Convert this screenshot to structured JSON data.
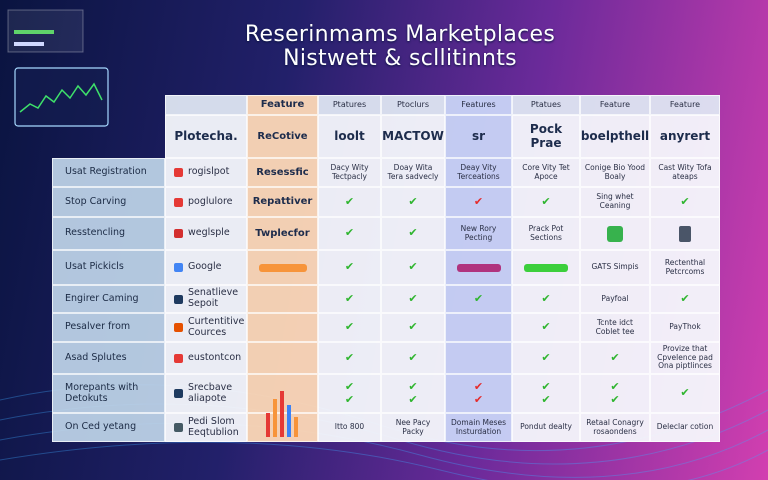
{
  "header": {
    "title_lines": [
      "Reserinmams Marketplaces",
      "Nistwett & scllitinnts"
    ]
  },
  "table": {
    "header": [
      null,
      "Feature",
      "Ptatures",
      "Ptoclurs",
      "Features",
      "Ptatues",
      "Feature",
      "Feature"
    ],
    "logos": [
      "Plotecha.",
      "ReCotive",
      "loolt",
      "MACTOW",
      "sr",
      "Pock Prae",
      "boelpthell",
      "anyrert"
    ],
    "rows": [
      {
        "label": "Usat Registration",
        "cells": [
          "rogislpot",
          "Resessfic",
          "Dacy Wity Tectpacly",
          "Doay Wita Tera sadvecly",
          "Deay Vity Terceations",
          "Core Vity Tet Apoce",
          "Conige Bio Yood Boaly",
          "Cast Wity Tofa ateaps"
        ]
      },
      {
        "label": "Stop Carving",
        "cells": [
          "poglulore",
          "Repattiver",
          "✔",
          "✔",
          "✔",
          "✔",
          "Sing whet Ceaning",
          "✔"
        ]
      },
      {
        "label": "Resstencling",
        "cells": [
          "weglsple",
          "Twplecfor",
          "✔",
          "✔",
          "New Rory Pecting",
          "Prack Pot Sections",
          null,
          null
        ]
      },
      {
        "label": "Usat Pickicls",
        "cells": [
          "Google",
          null,
          "✔",
          "✔",
          null,
          null,
          "GATS Simpis",
          "Rectenthal Petcrcoms"
        ]
      },
      {
        "label": "Engirer Caming",
        "cells": [
          "Senatlieve Sepoit",
          null,
          "✔",
          "✔",
          "✔",
          "✔",
          "Payfoal",
          "✔"
        ]
      },
      {
        "label": "Pesalver from",
        "cells": [
          "Curtentitive Cources",
          null,
          "✔",
          "✔",
          null,
          "✔",
          "Tcnte idct Coblet tee",
          "PayThok"
        ]
      },
      {
        "label": "Asad Splutes",
        "cells": [
          "eustontcon",
          null,
          "✔",
          "✔",
          null,
          "✔",
          "✔",
          "Provize that Cpvelence pad Ona piptlinces"
        ]
      },
      {
        "label": "Morepants with Detokuts",
        "cells": [
          "Srecbave aliapote",
          null,
          "✔\n✔",
          "✔\n✔",
          "✔\n✔",
          "✔\n✔",
          "✔\n✔",
          "✔"
        ]
      },
      {
        "label": "On Ced yetang",
        "cells": [
          "Pedi Slom Eeqtublion",
          null,
          "Itto 800",
          "Nee Pacy Packy",
          "Domain Meses Insturdation",
          "Pondut dealty",
          "Retaal Conagry rosaondens",
          "Deleclar cotion"
        ]
      }
    ]
  }
}
